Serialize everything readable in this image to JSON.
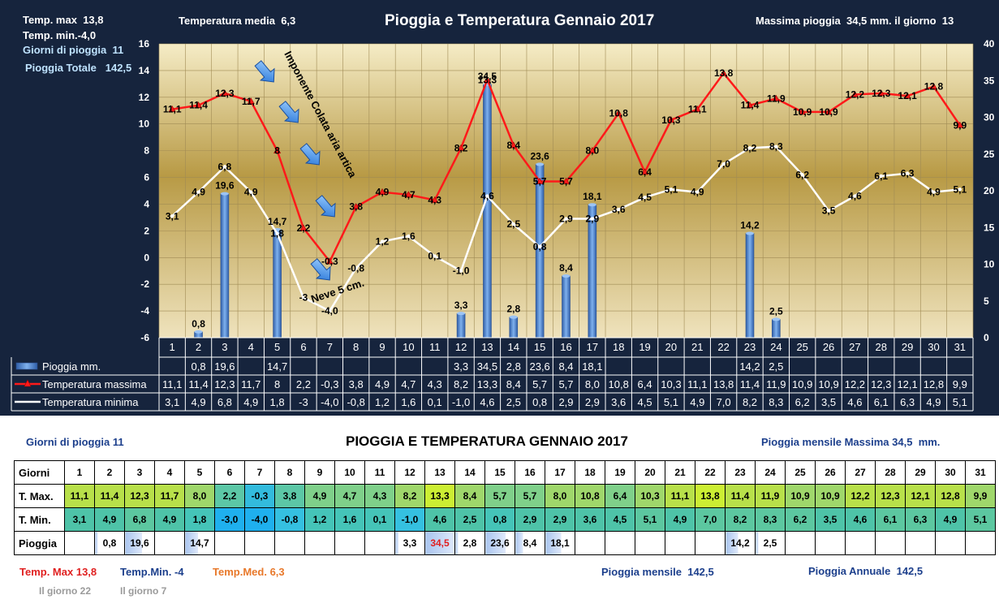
{
  "header": {
    "temp_max_label": "Temp. max",
    "temp_max_value": "13,8",
    "temp_min_label": "Temp.  min.",
    "temp_min_value": "-4,0",
    "rain_days_label": "Giorni  di pioggia",
    "rain_days_value": "11",
    "rain_total_label": "Pioggia Totale",
    "rain_total_value": "142,5",
    "temp_avg_label": "Temperatura media",
    "temp_avg_value": "6,3",
    "title": "Pioggia e Temperatura Gennaio 2017",
    "rain_max_label": "Massima pioggia",
    "rain_max_value": "34,5 mm.",
    "rain_max_day_label": "il giorno",
    "rain_max_day": "13"
  },
  "annotations": {
    "cold_wave": "Imponente Colata aria artica",
    "snow": "Neve  5 cm."
  },
  "chart_data": {
    "type": "bar+line",
    "days": [
      "1",
      "2",
      "3",
      "4",
      "5",
      "6",
      "7",
      "8",
      "9",
      "10",
      "11",
      "12",
      "13",
      "14",
      "15",
      "16",
      "17",
      "18",
      "19",
      "20",
      "21",
      "22",
      "23",
      "24",
      "25",
      "26",
      "27",
      "28",
      "29",
      "30",
      "31"
    ],
    "left_axis": {
      "min": -6,
      "max": 16,
      "ticks": [
        "-6",
        "-4",
        "-2",
        "0",
        "2",
        "4",
        "6",
        "8",
        "10",
        "12",
        "14",
        "16"
      ]
    },
    "right_axis": {
      "min": 0,
      "max": 40,
      "ticks": [
        "0",
        "5",
        "10",
        "15",
        "20",
        "25",
        "30",
        "35",
        "40"
      ]
    },
    "grid": true,
    "series": [
      {
        "name": "Pioggia mm.",
        "axis": "right",
        "color": "#4f86d6",
        "values": [
          null,
          0.8,
          19.6,
          null,
          14.7,
          null,
          null,
          null,
          null,
          null,
          null,
          3.3,
          34.5,
          2.8,
          23.6,
          8.4,
          18.1,
          null,
          null,
          null,
          null,
          null,
          14.2,
          2.5,
          null,
          null,
          null,
          null,
          null,
          null,
          null
        ],
        "labels": [
          "",
          "0,8",
          "19,6",
          "",
          "14,7",
          "",
          "",
          "",
          "",
          "",
          "",
          "3,3",
          "34,5",
          "2,8",
          "23,6",
          "8,4",
          "18,1",
          "",
          "",
          "",
          "",
          "",
          "14,2",
          "2,5",
          "",
          "",
          "",
          "",
          "",
          "",
          ""
        ]
      },
      {
        "name": "Temperatura massima",
        "axis": "left",
        "color": "#ff1a1a",
        "values": [
          11.1,
          11.4,
          12.3,
          11.7,
          8,
          2.2,
          -0.3,
          3.8,
          4.9,
          4.7,
          4.3,
          8.2,
          13.3,
          8.4,
          5.7,
          5.7,
          8.0,
          10.8,
          6.4,
          10.3,
          11.1,
          13.8,
          11.4,
          11.9,
          10.9,
          10.9,
          12.2,
          12.3,
          12.1,
          12.8,
          9.9
        ],
        "labels": [
          "11,1",
          "11,4",
          "12,3",
          "11,7",
          "8",
          "2,2",
          "-0,3",
          "3,8",
          "4,9",
          "4,7",
          "4,3",
          "8,2",
          "13,3",
          "8,4",
          "5,7",
          "5,7",
          "8,0",
          "10,8",
          "6,4",
          "10,3",
          "11,1",
          "13,8",
          "11,4",
          "11,9",
          "10,9",
          "10,9",
          "12,2",
          "12,3",
          "12,1",
          "12,8",
          "9,9"
        ]
      },
      {
        "name": "Temperatura minima",
        "axis": "left",
        "color": "#ffffff",
        "values": [
          3.1,
          4.9,
          6.8,
          4.9,
          1.8,
          -3,
          -4.0,
          -0.8,
          1.2,
          1.6,
          0.1,
          -1.0,
          4.6,
          2.5,
          0.8,
          2.9,
          2.9,
          3.6,
          4.5,
          5.1,
          4.9,
          7.0,
          8.2,
          8.3,
          6.2,
          3.5,
          4.6,
          6.1,
          6.3,
          4.9,
          5.1
        ],
        "labels": [
          "3,1",
          "4,9",
          "6,8",
          "4,9",
          "1,8",
          "-3",
          "-4,0",
          "-0,8",
          "1,2",
          "1,6",
          "0,1",
          "-1,0",
          "4,6",
          "2,5",
          "0,8",
          "2,9",
          "2,9",
          "3,6",
          "4,5",
          "5,1",
          "4,9",
          "7,0",
          "8,2",
          "8,3",
          "6,2",
          "3,5",
          "4,6",
          "6,1",
          "6,3",
          "4,9",
          "5,1"
        ]
      }
    ]
  },
  "colors": {
    "background": "#16243d",
    "plot_top": "#f5ecc6",
    "plot_mid": "#b89a45",
    "plot_bottom": "#efe3bd",
    "rain_bar": "#4f86d6",
    "tmax_line": "#ff1a1a",
    "tmin_line": "#ffffff"
  },
  "summary": {
    "rain_days_label": "Giorni di pioggia",
    "rain_days_value": "11",
    "title": "PIOGGIA E TEMPERATURA GENNAIO 2017",
    "monthly_max_label": "Pioggia mensile Massima",
    "monthly_max_value": "34,5",
    "monthly_max_unit": "mm.",
    "row_headers": [
      "Giorni",
      "T. Max.",
      "T. Min.",
      "Pioggia"
    ],
    "tmax_cells": [
      "11,1",
      "11,4",
      "12,3",
      "11,7",
      "8,0",
      "2,2",
      "-0,3",
      "3,8",
      "4,9",
      "4,7",
      "4,3",
      "8,2",
      "13,3",
      "8,4",
      "5,7",
      "5,7",
      "8,0",
      "10,8",
      "6,4",
      "10,3",
      "11,1",
      "13,8",
      "11,4",
      "11,9",
      "10,9",
      "10,9",
      "12,2",
      "12,3",
      "12,1",
      "12,8",
      "9,9"
    ],
    "tmin_cells": [
      "3,1",
      "4,9",
      "6,8",
      "4,9",
      "1,8",
      "-3,0",
      "-4,0",
      "-0,8",
      "1,2",
      "1,6",
      "0,1",
      "-1,0",
      "4,6",
      "2,5",
      "0,8",
      "2,9",
      "2,9",
      "3,6",
      "4,5",
      "5,1",
      "4,9",
      "7,0",
      "8,2",
      "8,3",
      "6,2",
      "3,5",
      "4,6",
      "6,1",
      "6,3",
      "4,9",
      "5,1"
    ],
    "rain_cells": [
      "",
      "0,8",
      "19,6",
      "",
      "14,7",
      "",
      "",
      "",
      "",
      "",
      "",
      "3,3",
      "34,5",
      "2,8",
      "23,6",
      "8,4",
      "18,1",
      "",
      "",
      "",
      "",
      "",
      "14,2",
      "2,5",
      "",
      "",
      "",
      "",
      "",
      "",
      ""
    ],
    "footer_tmax_label": "Temp. Max",
    "footer_tmax_value": "13,8",
    "footer_tmin_label": "Temp.Min.",
    "footer_tmin_value": "-4",
    "footer_tavg_label": "Temp.Med.",
    "footer_tavg_value": "6,3",
    "footer_tmax_day": "Il giorno 22",
    "footer_tmin_day": "Il giorno 7",
    "footer_monthly_label": "Pioggia mensile",
    "footer_monthly_value": "142,5",
    "footer_annual_label": "Pioggia Annuale",
    "footer_annual_value": "142,5"
  }
}
